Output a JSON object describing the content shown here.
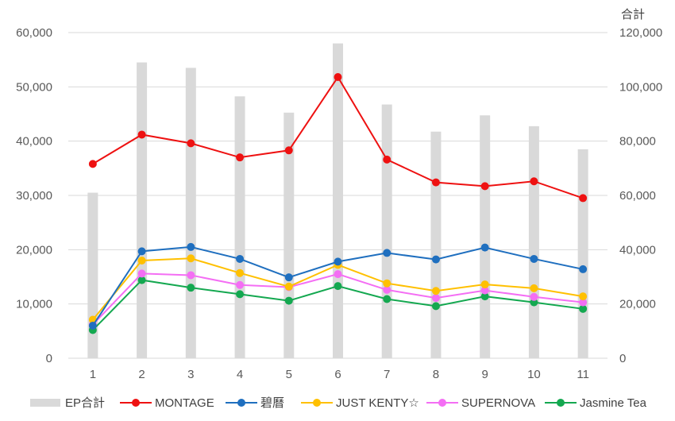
{
  "chart_data": {
    "type": "bar+line",
    "categories": [
      "1",
      "2",
      "3",
      "4",
      "5",
      "6",
      "7",
      "8",
      "9",
      "10",
      "11"
    ],
    "bar_series": {
      "name": "EP合計",
      "axis": "right",
      "color": "#d9d9d9",
      "values": [
        61000,
        109000,
        107000,
        96500,
        90500,
        116000,
        93500,
        83500,
        89500,
        85500,
        77000
      ]
    },
    "series": [
      {
        "name": "MONTAGE",
        "color": "#ee1111",
        "values": [
          35800,
          41200,
          39600,
          37000,
          38300,
          51800,
          36600,
          32400,
          31700,
          32600,
          29500
        ]
      },
      {
        "name": "碧曆",
        "color": "#1f6fbf",
        "values": [
          6000,
          19700,
          20500,
          18300,
          14900,
          17800,
          19400,
          18200,
          20400,
          18300,
          16400
        ]
      },
      {
        "name": "JUST KENTY☆",
        "color": "#ffc000",
        "values": [
          7100,
          18000,
          18400,
          15700,
          13200,
          17200,
          13800,
          12400,
          13600,
          12900,
          11400
        ]
      },
      {
        "name": "SUPERNOVA",
        "color": "#f46ef4",
        "values": [
          6200,
          15600,
          15300,
          13500,
          13100,
          15500,
          12600,
          11100,
          12500,
          11300,
          10300
        ]
      },
      {
        "name": "Jasmine Tea",
        "color": "#14a850",
        "values": [
          5200,
          14400,
          13000,
          11800,
          10600,
          13300,
          10900,
          9600,
          11400,
          10300,
          9100
        ]
      }
    ],
    "y_left": {
      "min": 0,
      "max": 60000,
      "ticks": [
        "0",
        "10,000",
        "20,000",
        "30,000",
        "40,000",
        "50,000",
        "60,000"
      ]
    },
    "y_right": {
      "min": 0,
      "max": 120000,
      "title": "合計",
      "ticks": [
        "0",
        "20,000",
        "40,000",
        "60,000",
        "80,000",
        "100,000",
        "120,000"
      ]
    },
    "grid": true,
    "legend_position": "bottom"
  }
}
